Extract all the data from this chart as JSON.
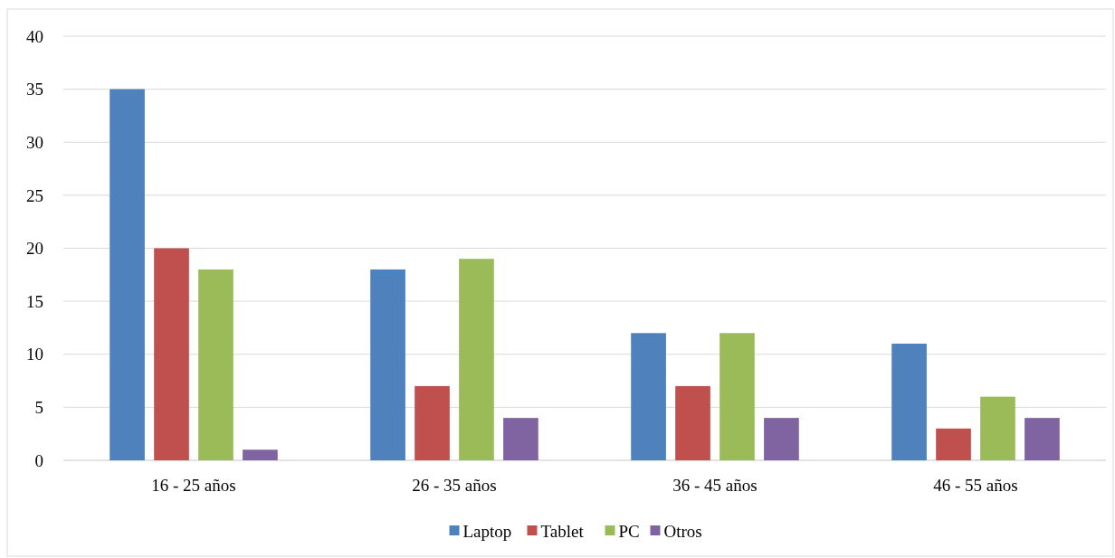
{
  "chart_data": {
    "type": "bar",
    "categories": [
      "16 - 25 años",
      "26 - 35 años",
      "36 - 45 años",
      "46 - 55 años"
    ],
    "series": [
      {
        "name": "Laptop",
        "color": "#4f81bd",
        "values": [
          35,
          18,
          12,
          11
        ]
      },
      {
        "name": "Tablet",
        "color": "#c0504d",
        "values": [
          20,
          7,
          7,
          3
        ]
      },
      {
        "name": "PC",
        "color": "#9bbb59",
        "values": [
          18,
          19,
          12,
          6
        ]
      },
      {
        "name": "Otros",
        "color": "#8064a2",
        "values": [
          1,
          4,
          4,
          4
        ]
      }
    ],
    "ylim": [
      0,
      40
    ],
    "yticks": [
      0,
      5,
      10,
      15,
      20,
      25,
      30,
      35,
      40
    ],
    "grid": "y",
    "legend": "bottom"
  }
}
